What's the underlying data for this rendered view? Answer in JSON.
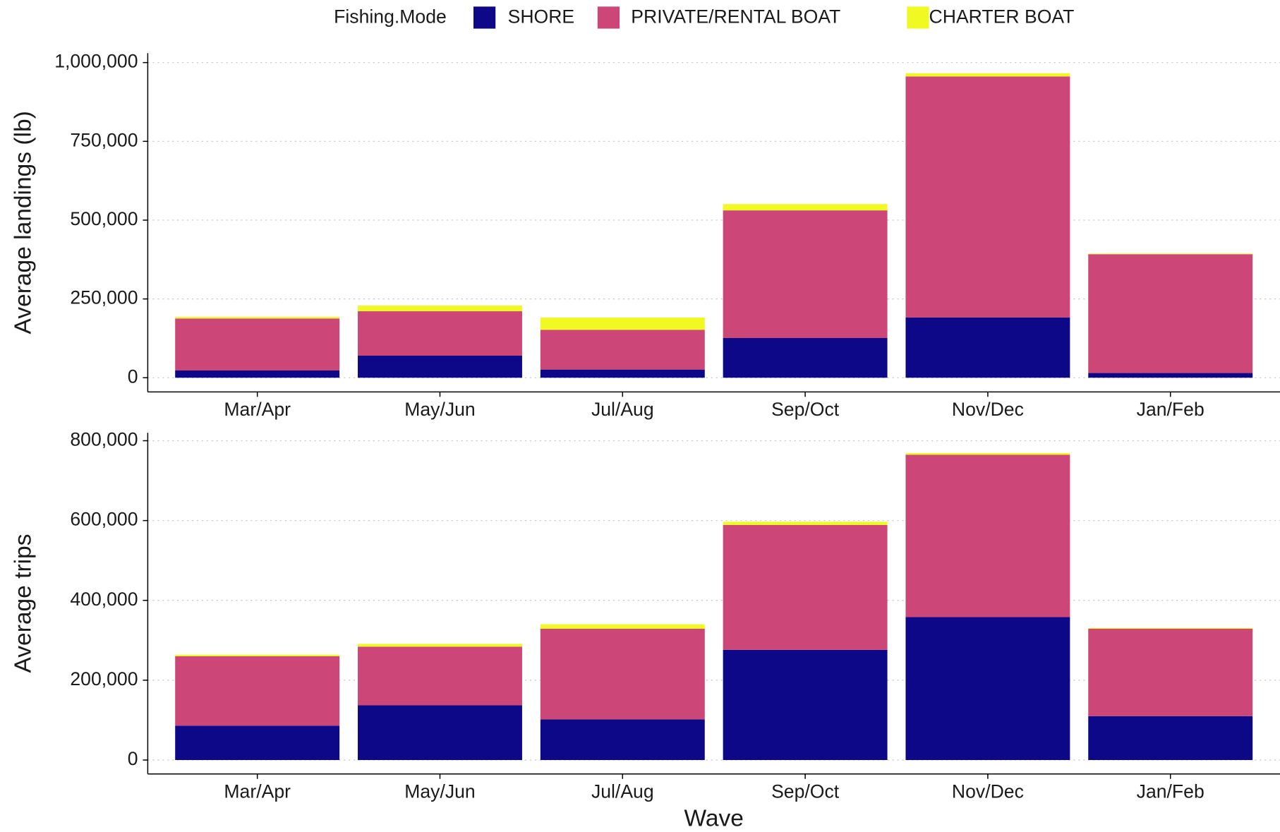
{
  "chart_data": [
    {
      "type": "stacked_bar",
      "legend_title": "Fishing.Mode",
      "legend": "top",
      "grid": true,
      "ylabel": "Average landings (lb)",
      "categories": [
        "Mar/Apr",
        "May/Jun",
        "Jul/Aug",
        "Sep/Oct",
        "Nov/Dec",
        "Jan/Feb"
      ],
      "series": [
        {
          "name": "SHORE",
          "color": "#0d0887",
          "values": [
            23000,
            70000,
            26000,
            126000,
            191000,
            15000
          ]
        },
        {
          "name": "PRIVATE/RENTAL BOAT",
          "color": "#cc4778",
          "values": [
            165000,
            141000,
            126000,
            405000,
            765000,
            377000
          ]
        },
        {
          "name": "CHARTER BOAT",
          "color": "#f0f921",
          "values": [
            5000,
            18000,
            39000,
            20000,
            10000,
            2000
          ]
        }
      ],
      "ylim": [
        -45000,
        1030000
      ],
      "yticks": [
        0,
        {
          "value": 250000,
          "label": "250,000"
        },
        {
          "value": 500000,
          "label": "500,000"
        },
        {
          "value": 750000,
          "label": "750,000"
        },
        {
          "value": 1000000,
          "label": "1,000,000"
        }
      ]
    },
    {
      "type": "stacked_bar",
      "grid": true,
      "ylabel": "Average trips",
      "xlabel": "Wave",
      "categories": [
        "Mar/Apr",
        "May/Jun",
        "Jul/Aug",
        "Sep/Oct",
        "Nov/Dec",
        "Jan/Feb"
      ],
      "series": [
        {
          "name": "SHORE",
          "color": "#0d0887",
          "values": [
            86000,
            137000,
            102000,
            276000,
            358000,
            110000
          ]
        },
        {
          "name": "PRIVATE/RENTAL BOAT",
          "color": "#cc4778",
          "values": [
            174000,
            147000,
            227000,
            313000,
            407000,
            219000
          ]
        },
        {
          "name": "CHARTER BOAT",
          "color": "#f0f921",
          "values": [
            4000,
            7000,
            11000,
            8000,
            4000,
            2000
          ]
        }
      ],
      "ylim": [
        -35000,
        820000
      ],
      "yticks": [
        0,
        {
          "value": 200000,
          "label": "200,000"
        },
        {
          "value": 400000,
          "label": "400,000"
        },
        {
          "value": 600000,
          "label": "600,000"
        },
        {
          "value": 800000,
          "label": "800,000"
        }
      ]
    }
  ]
}
